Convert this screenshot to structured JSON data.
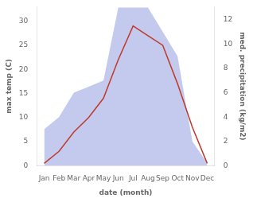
{
  "chart_data": {
    "type": "line",
    "xlabel": "date (month)",
    "ylabel": "max temp (C)",
    "y2label": "med. precipitation (kg/m2)",
    "categories": [
      "Jan",
      "Feb",
      "Mar",
      "Apr",
      "May",
      "Jun",
      "Jul",
      "Aug",
      "Sep",
      "Oct",
      "Nov",
      "Dec"
    ],
    "series": [
      {
        "type": "area",
        "axis": "y2",
        "color": "#b0b8e8",
        "values": [
          3.0,
          4.0,
          6.0,
          6.5,
          7.0,
          13.0,
          13.0,
          13.0,
          11.0,
          9.0,
          2.0,
          0.2
        ]
      },
      {
        "type": "line",
        "color": "#c0392b",
        "values": [
          0.5,
          3.0,
          7.0,
          10.0,
          14.0,
          22.0,
          29.0,
          27.0,
          25.0,
          17.0,
          8.0,
          0.5
        ]
      }
    ],
    "ylim": [
      0,
      33
    ],
    "yticks": [
      0,
      5,
      10,
      15,
      20,
      25,
      30
    ],
    "y2lim": [
      0,
      13.07
    ],
    "y2ticks": [
      0,
      2,
      4,
      6,
      8,
      10,
      12
    ],
    "grid": false
  }
}
